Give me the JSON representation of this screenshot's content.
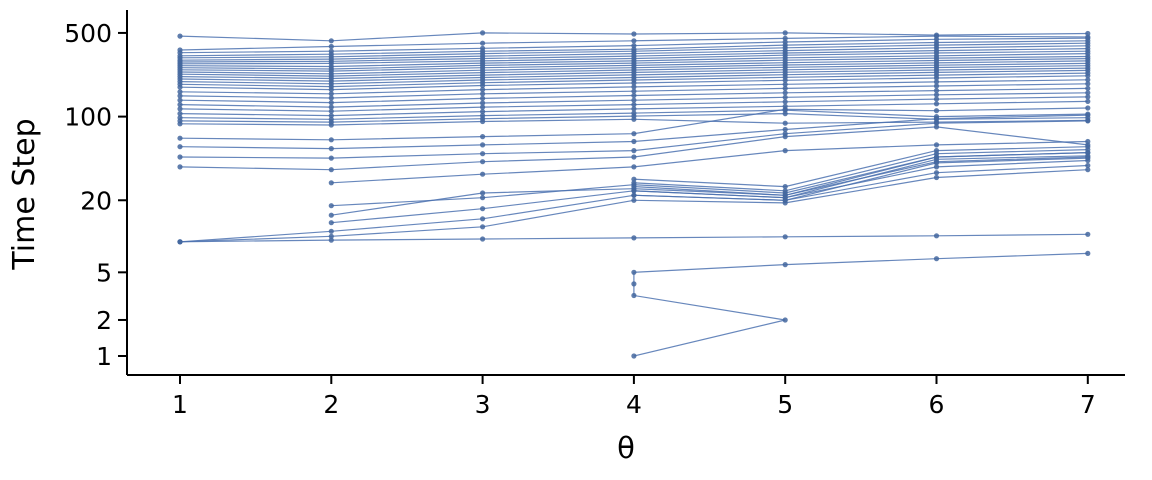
{
  "figure": {
    "background": "#ffffff"
  },
  "chart_data": {
    "type": "line",
    "title": "",
    "xlabel": "θ",
    "ylabel": "Time Step",
    "x_ticks": [
      1,
      2,
      3,
      4,
      5,
      6,
      7
    ],
    "x_tick_labels": [
      "1",
      "2",
      "3",
      "4",
      "5",
      "6",
      "7"
    ],
    "y_ticks": [
      1,
      2,
      5,
      20,
      100,
      500
    ],
    "y_tick_labels": [
      "1",
      "2",
      "5",
      "20",
      "100",
      "500"
    ],
    "y_scale": "log10",
    "xlim": [
      0.65,
      7.25
    ],
    "ylim": [
      0.69,
      610
    ],
    "grid": false,
    "legend": "none",
    "line_color": "#4C72B0",
    "marker_color": "#44679f",
    "axis_color": "#000000",
    "series": [
      {
        "x": [
          1,
          2,
          3,
          4,
          5,
          6,
          7
        ],
        "y": [
          470,
          430,
          500,
          490,
          500,
          480,
          495
        ]
      },
      {
        "x": [
          1,
          2,
          3,
          4,
          5,
          6,
          7
        ],
        "y": [
          360,
          385,
          410,
          430,
          450,
          470,
          462
        ]
      },
      {
        "x": [
          1,
          2,
          3,
          4,
          5,
          6,
          7
        ],
        "y": [
          342,
          352,
          372,
          392,
          420,
          442,
          452
        ]
      },
      {
        "x": [
          1,
          2,
          3,
          4,
          5,
          6,
          7
        ],
        "y": [
          322,
          332,
          352,
          366,
          396,
          416,
          430
        ]
      },
      {
        "x": [
          1,
          2,
          3,
          4,
          5,
          6,
          7
        ],
        "y": [
          310,
          316,
          336,
          352,
          376,
          396,
          410
        ]
      },
      {
        "x": [
          1,
          2,
          3,
          4,
          5,
          6,
          7
        ],
        "y": [
          296,
          302,
          320,
          336,
          356,
          376,
          390
        ]
      },
      {
        "x": [
          1,
          2,
          3,
          4,
          5,
          6,
          7
        ],
        "y": [
          286,
          290,
          306,
          320,
          340,
          356,
          370
        ]
      },
      {
        "x": [
          1,
          2,
          3,
          4,
          5,
          6,
          7
        ],
        "y": [
          276,
          278,
          292,
          306,
          326,
          340,
          352
        ]
      },
      {
        "x": [
          1,
          2,
          3,
          4,
          5,
          6,
          7
        ],
        "y": [
          266,
          262,
          280,
          292,
          310,
          322,
          336
        ]
      },
      {
        "x": [
          1,
          2,
          3,
          4,
          5,
          6,
          7
        ],
        "y": [
          256,
          250,
          268,
          280,
          296,
          308,
          318
        ]
      },
      {
        "x": [
          1,
          2,
          3,
          4,
          5,
          6,
          7
        ],
        "y": [
          246,
          240,
          256,
          268,
          282,
          294,
          305
        ]
      },
      {
        "x": [
          1,
          2,
          3,
          4,
          5,
          6,
          7
        ],
        "y": [
          236,
          228,
          244,
          256,
          270,
          281,
          292
        ]
      },
      {
        "x": [
          1,
          2,
          3,
          4,
          5,
          6,
          7
        ],
        "y": [
          226,
          218,
          233,
          245,
          258,
          269,
          278
        ]
      },
      {
        "x": [
          1,
          2,
          3,
          4,
          5,
          6,
          7
        ],
        "y": [
          216,
          208,
          222,
          234,
          246,
          257,
          266
        ]
      },
      {
        "x": [
          1,
          2,
          3,
          4,
          5,
          6,
          7
        ],
        "y": [
          206,
          198,
          212,
          223,
          235,
          245,
          254
        ]
      },
      {
        "x": [
          1,
          2,
          3,
          4,
          5,
          6,
          7
        ],
        "y": [
          196,
          188,
          202,
          212,
          224,
          234,
          243
        ]
      },
      {
        "x": [
          1,
          2,
          3,
          4,
          5,
          6,
          7
        ],
        "y": [
          186,
          178,
          192,
          202,
          213,
          222,
          231
        ]
      },
      {
        "x": [
          1,
          2,
          3,
          4,
          5,
          6,
          7
        ],
        "y": [
          176,
          168,
          182,
          191,
          201,
          210,
          219
        ]
      },
      {
        "x": [
          1,
          2,
          3,
          4,
          5,
          6,
          7
        ],
        "y": [
          161,
          155,
          168,
          177,
          186,
          195,
          203
        ]
      },
      {
        "x": [
          1,
          2,
          3,
          4,
          5,
          6,
          7
        ],
        "y": [
          149,
          143,
          155,
          163,
          172,
          180,
          188
        ]
      },
      {
        "x": [
          1,
          2,
          3,
          4,
          5,
          6,
          7
        ],
        "y": [
          137,
          131,
          142,
          150,
          158,
          165,
          172
        ]
      },
      {
        "x": [
          1,
          2,
          3,
          4,
          5,
          6,
          7
        ],
        "y": [
          126,
          120,
          130,
          137,
          145,
          152,
          158
        ]
      },
      {
        "x": [
          1,
          2,
          3,
          4,
          5,
          6,
          7
        ],
        "y": [
          116,
          111,
          120,
          126,
          133,
          140,
          146
        ]
      },
      {
        "x": [
          1,
          2,
          3,
          4,
          5,
          6,
          7
        ],
        "y": [
          106,
          102,
          110,
          116,
          122,
          128,
          134
        ]
      },
      {
        "x": [
          1,
          2,
          3,
          4,
          5,
          6,
          7
        ],
        "y": [
          98,
          95,
          102,
          107,
          113,
          100,
          105
        ]
      },
      {
        "x": [
          1,
          2,
          3,
          4,
          5,
          6,
          7
        ],
        "y": [
          92,
          90,
          96,
          101,
          106,
          95,
          98
        ]
      },
      {
        "x": [
          1,
          2,
          3,
          4,
          5,
          6,
          7
        ],
        "y": [
          87,
          85,
          91,
          95,
          88,
          90,
          93
        ]
      },
      {
        "x": [
          1,
          2,
          3,
          4,
          5,
          6,
          7
        ],
        "y": [
          66,
          64,
          68,
          72,
          115,
          112,
          118
        ]
      },
      {
        "x": [
          1,
          2,
          3,
          4,
          5,
          6,
          7
        ],
        "y": [
          56,
          54,
          58,
          62,
          78,
          96,
          103
        ]
      },
      {
        "x": [
          1,
          2,
          3,
          4,
          5,
          6,
          7
        ],
        "y": [
          46,
          45,
          49,
          52,
          72,
          88,
          92
        ]
      },
      {
        "x": [
          1,
          2,
          3,
          4,
          5,
          6,
          7
        ],
        "y": [
          38,
          36,
          42,
          46,
          68,
          82,
          58
        ]
      },
      {
        "x": [
          2,
          3,
          4,
          5,
          6,
          7
        ],
        "y": [
          28,
          33,
          38,
          52,
          58,
          62
        ]
      },
      {
        "x": [
          2,
          3,
          4,
          5,
          6,
          7
        ],
        "y": [
          18,
          21,
          27,
          23,
          46,
          50
        ]
      },
      {
        "x": [
          2,
          3,
          4,
          5,
          6,
          7
        ],
        "y": [
          15,
          23,
          25,
          22,
          42,
          46
        ]
      },
      {
        "x": [
          2,
          3,
          4,
          5,
          6,
          7
        ],
        "y": [
          13,
          17,
          24,
          21,
          38,
          43
        ]
      },
      {
        "x": [
          1,
          2,
          3,
          4,
          5,
          6,
          7
        ],
        "y": [
          9,
          11,
          14,
          22,
          20,
          34,
          39
        ]
      },
      {
        "x": [
          1,
          2,
          3,
          4,
          5,
          6,
          7
        ],
        "y": [
          9,
          10,
          12,
          20,
          19,
          31,
          36
        ]
      },
      {
        "x": [
          4,
          5,
          6,
          7
        ],
        "y": [
          30,
          26,
          52,
          56
        ]
      },
      {
        "x": [
          4,
          5,
          6,
          7
        ],
        "y": [
          28,
          24,
          49,
          53
        ]
      },
      {
        "x": [
          4,
          5,
          6,
          7
        ],
        "y": [
          26,
          22,
          46,
          50
        ]
      },
      {
        "x": [
          4,
          5,
          6,
          7
        ],
        "y": [
          24,
          21,
          44,
          47
        ]
      },
      {
        "x": [
          4,
          5,
          6,
          7
        ],
        "y": [
          22,
          20,
          41,
          45
        ]
      },
      {
        "x": [
          1,
          2,
          3,
          4,
          5,
          6,
          7
        ],
        "y": [
          9,
          9.3,
          9.5,
          9.7,
          9.9,
          10.1,
          10.4
        ]
      },
      {
        "x": [
          4,
          5,
          4,
          4,
          4,
          5,
          6,
          7
        ],
        "y": [
          1,
          2,
          3.2,
          4,
          5,
          5.8,
          6.5,
          7.2
        ]
      }
    ]
  }
}
